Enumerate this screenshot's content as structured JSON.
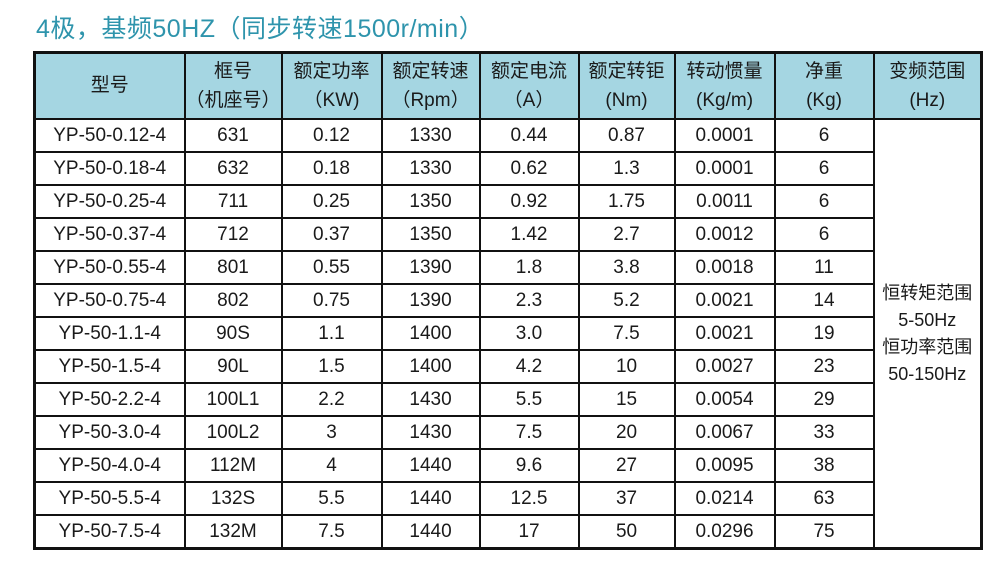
{
  "title": "4极，基频50HZ（同步转速1500r/min）",
  "colors": {
    "title": "#2e94ac",
    "header_bg": "#a5d6e2",
    "border": "#111111",
    "text": "#1a1a1a",
    "page_bg": "#ffffff"
  },
  "table": {
    "headers": [
      {
        "line1": "型号",
        "line2": ""
      },
      {
        "line1": "框号",
        "line2": "（机座号）"
      },
      {
        "line1": "额定功率",
        "line2": "（KW)"
      },
      {
        "line1": "额定转速",
        "line2": "（Rpm）"
      },
      {
        "line1": "额定电流",
        "line2": "（A）"
      },
      {
        "line1": "额定转钜",
        "line2": "(Nm)"
      },
      {
        "line1": "转动惯量",
        "line2": "(Kg/m)"
      },
      {
        "line1": "净重",
        "line2": "(Kg)"
      },
      {
        "line1": "变频范围",
        "line2": "(Hz)"
      }
    ],
    "rows": [
      [
        "YP-50-0.12-4",
        "631",
        "0.12",
        "1330",
        "0.44",
        "0.87",
        "0.0001",
        "6"
      ],
      [
        "YP-50-0.18-4",
        "632",
        "0.18",
        "1330",
        "0.62",
        "1.3",
        "0.0001",
        "6"
      ],
      [
        "YP-50-0.25-4",
        "711",
        "0.25",
        "1350",
        "0.92",
        "1.75",
        "0.0011",
        "6"
      ],
      [
        "YP-50-0.37-4",
        "712",
        "0.37",
        "1350",
        "1.42",
        "2.7",
        "0.0012",
        "6"
      ],
      [
        "YP-50-0.55-4",
        "801",
        "0.55",
        "1390",
        "1.8",
        "3.8",
        "0.0018",
        "11"
      ],
      [
        "YP-50-0.75-4",
        "802",
        "0.75",
        "1390",
        "2.3",
        "5.2",
        "0.0021",
        "14"
      ],
      [
        "YP-50-1.1-4",
        "90S",
        "1.1",
        "1400",
        "3.0",
        "7.5",
        "0.0021",
        "19"
      ],
      [
        "YP-50-1.5-4",
        "90L",
        "1.5",
        "1400",
        "4.2",
        "10",
        "0.0027",
        "23"
      ],
      [
        "YP-50-2.2-4",
        "100L1",
        "2.2",
        "1430",
        "5.5",
        "15",
        "0.0054",
        "29"
      ],
      [
        "YP-50-3.0-4",
        "100L2",
        "3",
        "1430",
        "7.5",
        "20",
        "0.0067",
        "33"
      ],
      [
        "YP-50-4.0-4",
        "112M",
        "4",
        "1440",
        "9.6",
        "27",
        "0.0095",
        "38"
      ],
      [
        "YP-50-5.5-4",
        "132S",
        "5.5",
        "1440",
        "12.5",
        "37",
        "0.0214",
        "63"
      ],
      [
        "YP-50-7.5-4",
        "132M",
        "7.5",
        "1440",
        "17",
        "50",
        "0.0296",
        "75"
      ]
    ],
    "merged_note_lines": [
      "恒转矩范围",
      "5-50Hz",
      "恒功率范围",
      "50-150Hz"
    ]
  }
}
